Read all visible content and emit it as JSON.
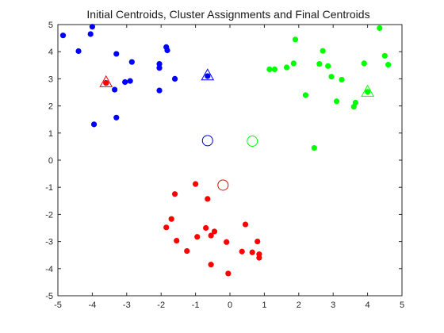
{
  "chart_data": {
    "type": "scatter",
    "title": "Initial Centroids, Cluster Assignments and Final Centroids",
    "xlabel": "",
    "ylabel": "",
    "xlim": [
      -5,
      5
    ],
    "ylim": [
      -5,
      5
    ],
    "xticks": [
      "-5",
      "-4",
      "-3",
      "-2",
      "-1",
      "0",
      "1",
      "2",
      "3",
      "4",
      "5"
    ],
    "yticks": [
      "-5",
      "-4",
      "-3",
      "-2",
      "-1",
      "0",
      "1",
      "2",
      "3",
      "4",
      "5"
    ],
    "grid": false,
    "legend": "none",
    "series": [
      {
        "color": "#0000ff",
        "marker": "filled-circle",
        "points": [
          [
            -4.85,
            4.6
          ],
          [
            -4.0,
            4.92
          ],
          [
            -4.05,
            4.65
          ],
          [
            -4.4,
            4.02
          ],
          [
            -3.3,
            3.92
          ],
          [
            -2.85,
            3.62
          ],
          [
            -3.05,
            2.88
          ],
          [
            -2.9,
            2.92
          ],
          [
            -3.35,
            2.6
          ],
          [
            -3.6,
            2.85
          ],
          [
            -3.95,
            1.32
          ],
          [
            -3.3,
            1.57
          ],
          [
            -1.85,
            4.17
          ],
          [
            -1.82,
            4.05
          ],
          [
            -2.05,
            3.55
          ],
          [
            -2.05,
            3.4
          ],
          [
            -1.6,
            3.0
          ],
          [
            -2.05,
            2.57
          ],
          [
            -0.65,
            3.1
          ]
        ]
      },
      {
        "color": "#00ff00",
        "marker": "filled-circle",
        "points": [
          [
            4.35,
            4.87
          ],
          [
            1.9,
            4.45
          ],
          [
            2.7,
            4.03
          ],
          [
            4.5,
            3.85
          ],
          [
            4.6,
            3.52
          ],
          [
            3.9,
            3.57
          ],
          [
            1.85,
            3.57
          ],
          [
            2.6,
            3.55
          ],
          [
            2.85,
            3.47
          ],
          [
            1.65,
            3.42
          ],
          [
            1.3,
            3.35
          ],
          [
            1.15,
            3.35
          ],
          [
            2.95,
            3.08
          ],
          [
            3.25,
            2.97
          ],
          [
            4.0,
            2.52
          ],
          [
            2.2,
            2.4
          ],
          [
            3.1,
            2.17
          ],
          [
            3.65,
            2.12
          ],
          [
            3.6,
            1.97
          ],
          [
            2.45,
            0.45
          ]
        ]
      },
      {
        "color": "#ff0000",
        "marker": "filled-circle",
        "points": [
          [
            -1.0,
            -0.88
          ],
          [
            -1.6,
            -1.25
          ],
          [
            -0.65,
            -1.43
          ],
          [
            -1.7,
            -2.17
          ],
          [
            -1.85,
            -2.48
          ],
          [
            -0.7,
            -2.5
          ],
          [
            -0.45,
            -2.63
          ],
          [
            -0.55,
            -2.78
          ],
          [
            -0.95,
            -2.83
          ],
          [
            -1.55,
            -2.97
          ],
          [
            -0.1,
            -3.02
          ],
          [
            0.8,
            -3.0
          ],
          [
            0.45,
            -2.37
          ],
          [
            -1.25,
            -3.35
          ],
          [
            0.35,
            -3.37
          ],
          [
            0.65,
            -3.4
          ],
          [
            0.85,
            -3.47
          ],
          [
            0.85,
            -3.6
          ],
          [
            -0.55,
            -3.85
          ],
          [
            -0.05,
            -4.18
          ],
          [
            -3.6,
            2.85
          ]
        ]
      }
    ],
    "initial_centroids": [
      {
        "x": -0.65,
        "y": 0.72,
        "color": "#0000ff",
        "marker": "open-circle"
      },
      {
        "x": 0.65,
        "y": 0.7,
        "color": "#00ff00",
        "marker": "open-circle"
      },
      {
        "x": -0.2,
        "y": -0.92,
        "color": "#ff0000",
        "marker": "open-circle"
      }
    ],
    "final_centroids": [
      {
        "x": -0.65,
        "y": 3.12,
        "color": "#0000ff",
        "marker": "open-triangle"
      },
      {
        "x": 4.0,
        "y": 2.52,
        "color": "#00ff00",
        "marker": "open-triangle"
      },
      {
        "x": -3.6,
        "y": 2.87,
        "color": "#ff0000",
        "marker": "open-triangle"
      }
    ]
  }
}
